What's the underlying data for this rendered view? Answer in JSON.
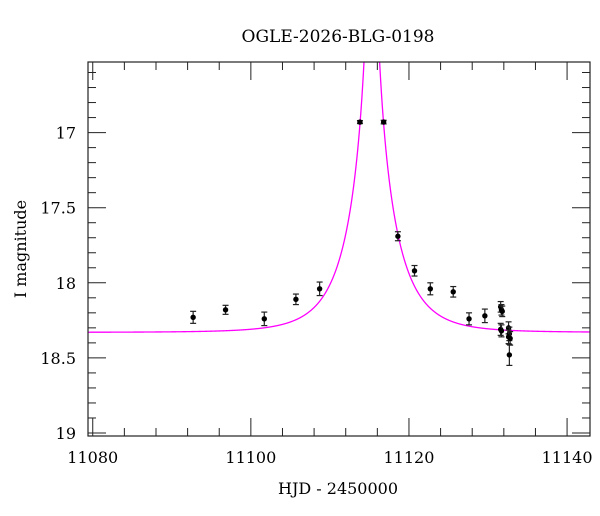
{
  "chart_data": {
    "type": "scatter",
    "title": "OGLE-2026-BLG-0198",
    "xlabel": "HJD - 2450000",
    "ylabel": "I magnitude",
    "xlim": [
      11079.4,
      11142.9
    ],
    "ylim": [
      19.02,
      16.53
    ],
    "y_inverted": true,
    "grid": false,
    "x_ticks": [
      11080,
      11100,
      11120,
      11140
    ],
    "x_tick_labels": [
      "11080",
      "11100",
      "11120",
      "11140"
    ],
    "y_ticks": [
      17,
      17.5,
      18,
      18.5,
      19
    ],
    "y_tick_labels": [
      "17",
      "17.5",
      "18",
      "18.5",
      "19"
    ],
    "series": [
      {
        "name": "data",
        "color": "#000000",
        "points": [
          {
            "x": 11092.7,
            "y": 18.23,
            "err": 0.04
          },
          {
            "x": 11096.8,
            "y": 18.18,
            "err": 0.03
          },
          {
            "x": 11101.7,
            "y": 18.24,
            "err": 0.045
          },
          {
            "x": 11105.7,
            "y": 18.11,
            "err": 0.035
          },
          {
            "x": 11108.7,
            "y": 18.04,
            "err": 0.045
          },
          {
            "x": 11113.8,
            "y": 16.93,
            "err": 0.01
          },
          {
            "x": 11116.8,
            "y": 16.93,
            "err": 0.012
          },
          {
            "x": 11118.6,
            "y": 17.69,
            "err": 0.03
          },
          {
            "x": 11120.7,
            "y": 17.92,
            "err": 0.035
          },
          {
            "x": 11122.7,
            "y": 18.04,
            "err": 0.04
          },
          {
            "x": 11125.6,
            "y": 18.06,
            "err": 0.035
          },
          {
            "x": 11127.6,
            "y": 18.24,
            "err": 0.04
          },
          {
            "x": 11129.6,
            "y": 18.22,
            "err": 0.045
          },
          {
            "x": 11131.6,
            "y": 18.16,
            "err": 0.035
          },
          {
            "x": 11131.7,
            "y": 18.18,
            "err": 0.035
          },
          {
            "x": 11131.8,
            "y": 18.19,
            "err": 0.035
          },
          {
            "x": 11131.6,
            "y": 18.31,
            "err": 0.04
          },
          {
            "x": 11131.7,
            "y": 18.32,
            "err": 0.04
          },
          {
            "x": 11132.6,
            "y": 18.3,
            "err": 0.04
          },
          {
            "x": 11132.7,
            "y": 18.34,
            "err": 0.045
          },
          {
            "x": 11132.6,
            "y": 18.36,
            "err": 0.045
          },
          {
            "x": 11132.8,
            "y": 18.37,
            "err": 0.045
          },
          {
            "x": 11132.7,
            "y": 18.48,
            "err": 0.07
          }
        ]
      },
      {
        "name": "model",
        "color": "#ff00ff",
        "model": {
          "t0": 11115.3,
          "tE": 5.3,
          "u0": 0.05,
          "baseline": 18.33
        }
      }
    ]
  }
}
